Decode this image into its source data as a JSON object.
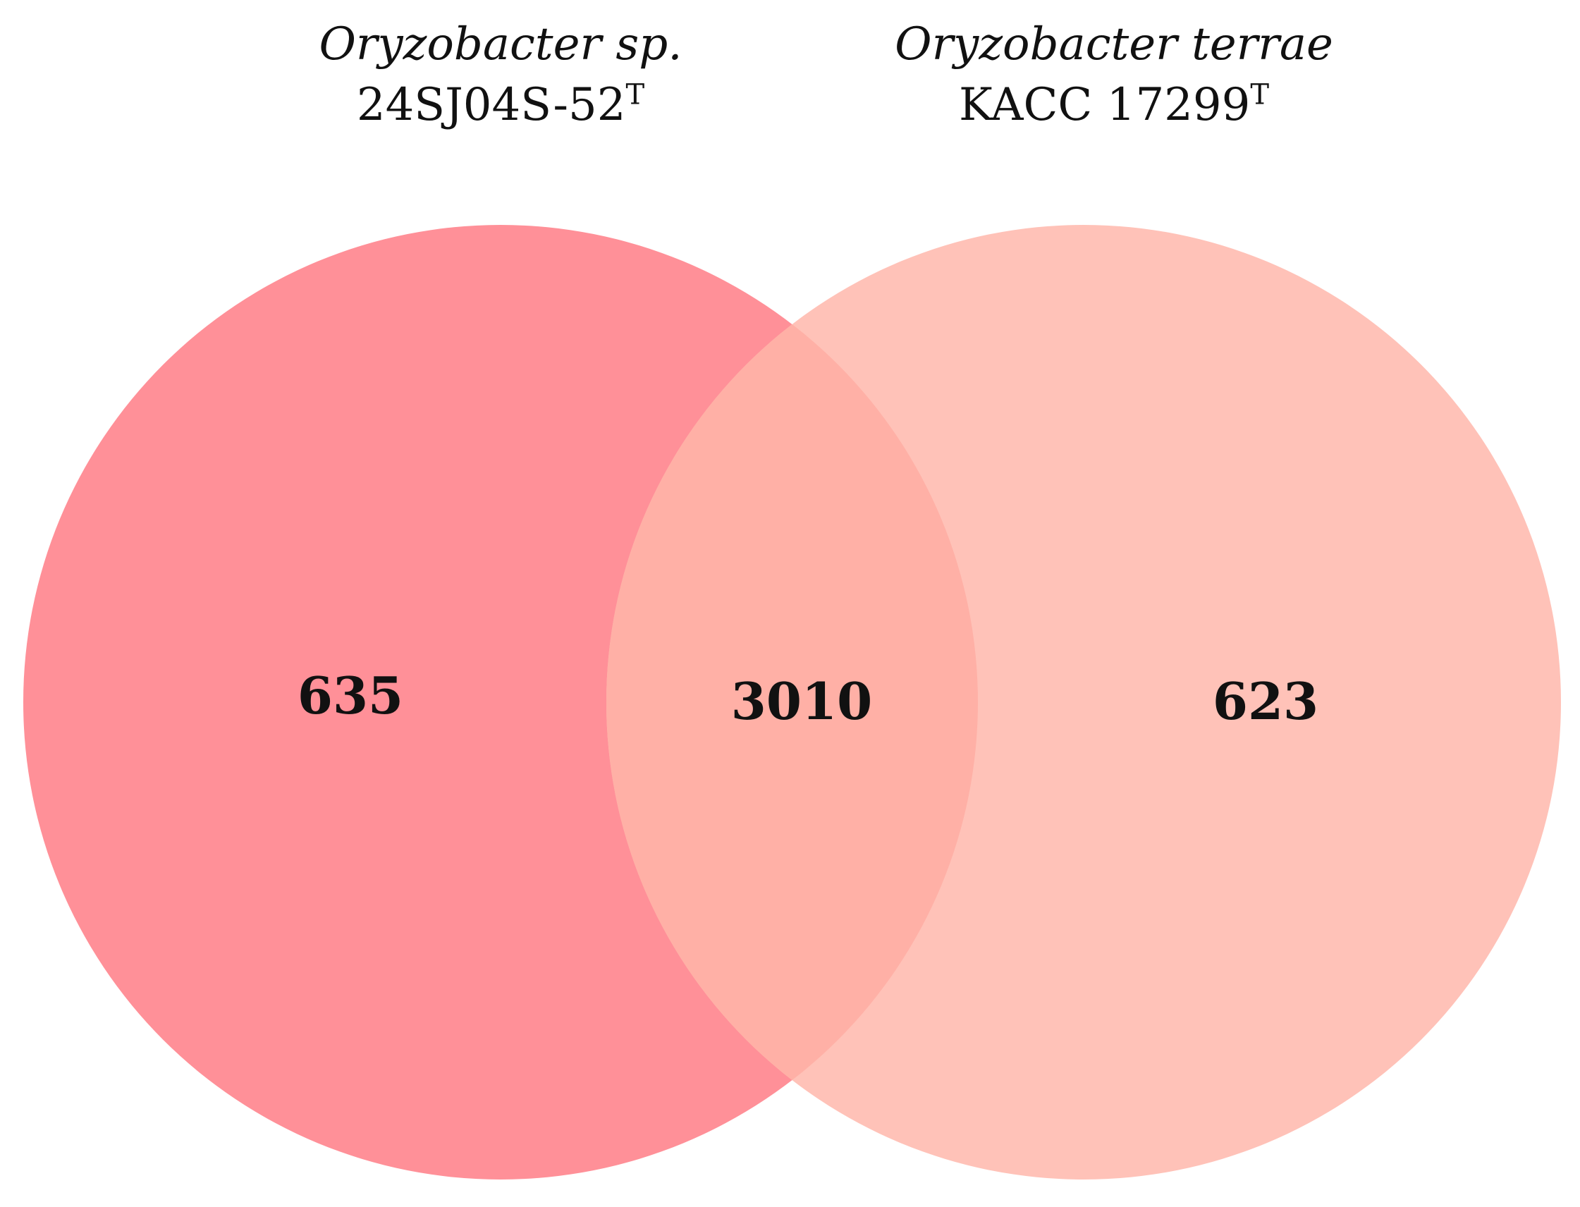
{
  "sets": [
    {
      "species": "Oryzobacter sp.",
      "strain": "24SJ04S-52",
      "strain_superscript": "T",
      "color": "#FF9098"
    },
    {
      "species": "Oryzobacter terrae",
      "strain": "KACC 17299",
      "strain_superscript": "T",
      "color": "#FFC2B8"
    }
  ],
  "overlap_color": "#FFB0A6",
  "counts": {
    "only_a": "635",
    "shared": "3010",
    "only_b": "623"
  }
}
